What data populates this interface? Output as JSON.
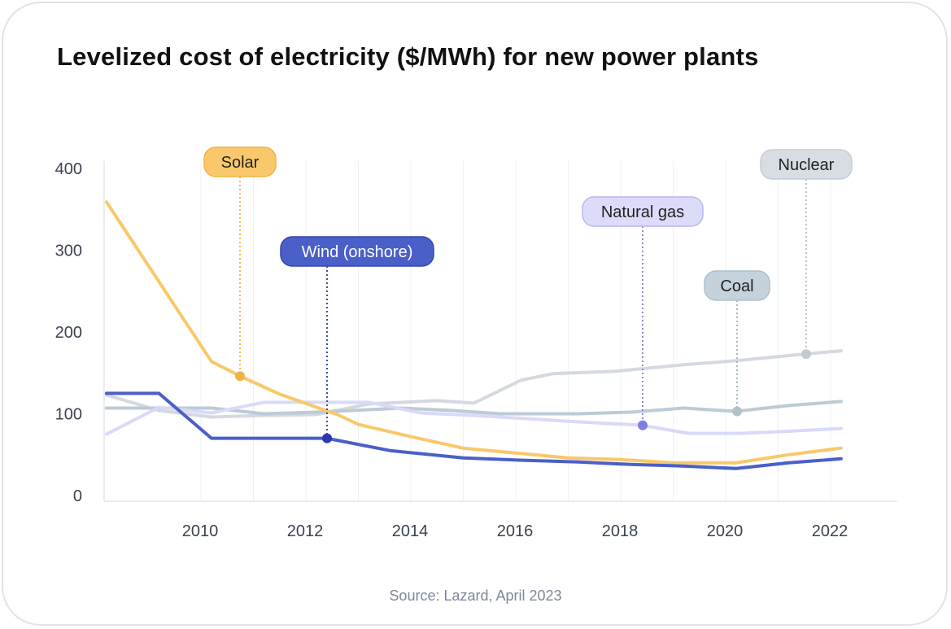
{
  "title": "Levelized cost of electricity ($/MWh) for new power plants",
  "source": "Source: Lazard, April 2023",
  "chart_data": {
    "type": "line",
    "title": "Levelized cost of electricity ($/MWh) for new power plants",
    "xlabel": "",
    "ylabel": "",
    "xlim": [
      2008.1,
      2023.3
    ],
    "ylim": [
      0,
      400
    ],
    "x_ticks": [
      2010,
      2012,
      2014,
      2016,
      2018,
      2020,
      2022
    ],
    "y_ticks": [
      0,
      100,
      200,
      300,
      400
    ],
    "grid": "vertical",
    "legend": "inline labels",
    "series": [
      {
        "name": "Nuclear",
        "color": "#d4d9e1",
        "points": [
          [
            2008.2,
            123
          ],
          [
            2009.2,
            104
          ],
          [
            2010.2,
            96
          ],
          [
            2011.2,
            98
          ],
          [
            2012.2,
            99
          ],
          [
            2013.2,
            112
          ],
          [
            2014.5,
            116
          ],
          [
            2015.2,
            113
          ],
          [
            2016.1,
            141
          ],
          [
            2016.7,
            149
          ],
          [
            2017.9,
            152
          ],
          [
            2019.2,
            160
          ],
          [
            2020.2,
            165
          ],
          [
            2021.5,
            173
          ],
          [
            2022.2,
            177
          ]
        ],
        "marker": [
          2021.5,
          173
        ]
      },
      {
        "name": "Coal",
        "color": "#bccbd5",
        "points": [
          [
            2008.2,
            107
          ],
          [
            2009.2,
            107
          ],
          [
            2010.2,
            107
          ],
          [
            2011.2,
            100
          ],
          [
            2012.2,
            102
          ],
          [
            2013.2,
            105
          ],
          [
            2013.8,
            107
          ],
          [
            2014.8,
            104
          ],
          [
            2015.7,
            100
          ],
          [
            2017.2,
            100
          ],
          [
            2018.2,
            102
          ],
          [
            2019.2,
            107
          ],
          [
            2020.2,
            103
          ],
          [
            2021.2,
            110
          ],
          [
            2022.2,
            115
          ]
        ],
        "marker": [
          2020.2,
          103
        ]
      },
      {
        "name": "Natural gas",
        "color": "#d9d9fa",
        "points": [
          [
            2008.2,
            75
          ],
          [
            2009.2,
            108
          ],
          [
            2010.2,
            101
          ],
          [
            2011.2,
            114
          ],
          [
            2012.2,
            114
          ],
          [
            2013.2,
            114
          ],
          [
            2014.2,
            101
          ],
          [
            2015.2,
            98
          ],
          [
            2016.2,
            94
          ],
          [
            2017.2,
            90
          ],
          [
            2018.4,
            86
          ],
          [
            2019.3,
            76
          ],
          [
            2020.3,
            76
          ],
          [
            2021.3,
            79
          ],
          [
            2022.2,
            82
          ]
        ],
        "marker": [
          2018.4,
          86
        ]
      },
      {
        "name": "Solar",
        "color": "#f9c86a",
        "points": [
          [
            2008.2,
            359
          ],
          [
            2010.2,
            164
          ],
          [
            2010.75,
            146
          ],
          [
            2011.5,
            124
          ],
          [
            2012.6,
            99
          ],
          [
            2013.0,
            87
          ],
          [
            2014.0,
            72
          ],
          [
            2015.0,
            58
          ],
          [
            2016.0,
            52
          ],
          [
            2017.0,
            46
          ],
          [
            2018.0,
            44
          ],
          [
            2019.0,
            40
          ],
          [
            2020.2,
            40
          ],
          [
            2021.2,
            50
          ],
          [
            2022.2,
            58
          ]
        ],
        "marker": [
          2010.75,
          146
        ]
      },
      {
        "name": "Wind (onshore)",
        "color": "#4a5fc8",
        "points": [
          [
            2008.2,
            125
          ],
          [
            2009.2,
            125
          ],
          [
            2010.2,
            70
          ],
          [
            2011.2,
            70
          ],
          [
            2012.4,
            70
          ],
          [
            2013.6,
            55
          ],
          [
            2015.0,
            46
          ],
          [
            2016.2,
            43
          ],
          [
            2017.2,
            41
          ],
          [
            2018.2,
            38
          ],
          [
            2019.2,
            36
          ],
          [
            2020.2,
            33
          ],
          [
            2021.2,
            40
          ],
          [
            2022.2,
            45
          ]
        ],
        "marker": [
          2012.4,
          70
        ]
      }
    ],
    "labels": [
      {
        "text": "Solar",
        "fill": "#f9c86a",
        "stroke": "#f0b346",
        "text_color": "#222222",
        "line": "#f0b346",
        "dot": "#f0b346"
      },
      {
        "text": "Wind (onshore)",
        "fill": "#4a5fc8",
        "stroke": "#3346b0",
        "text_color": "#ffffff",
        "line": "#2a3b9e",
        "dot": "#2a3bb0"
      },
      {
        "text": "Natural gas",
        "fill": "#dcdbfa",
        "stroke": "#b8b6f2",
        "text_color": "#222222",
        "line": "#7d7fdc",
        "dot": "#7d7fe6"
      },
      {
        "text": "Coal",
        "fill": "#c5d2db",
        "stroke": "#afc0cc",
        "text_color": "#222222",
        "line": "#9fb4bf",
        "dot": "#b0c2cc"
      },
      {
        "text": "Nuclear",
        "fill": "#d8dde4",
        "stroke": "#c6ccd6",
        "text_color": "#222222",
        "line": "#b3bac5",
        "dot": "#c4c9d1"
      }
    ]
  }
}
